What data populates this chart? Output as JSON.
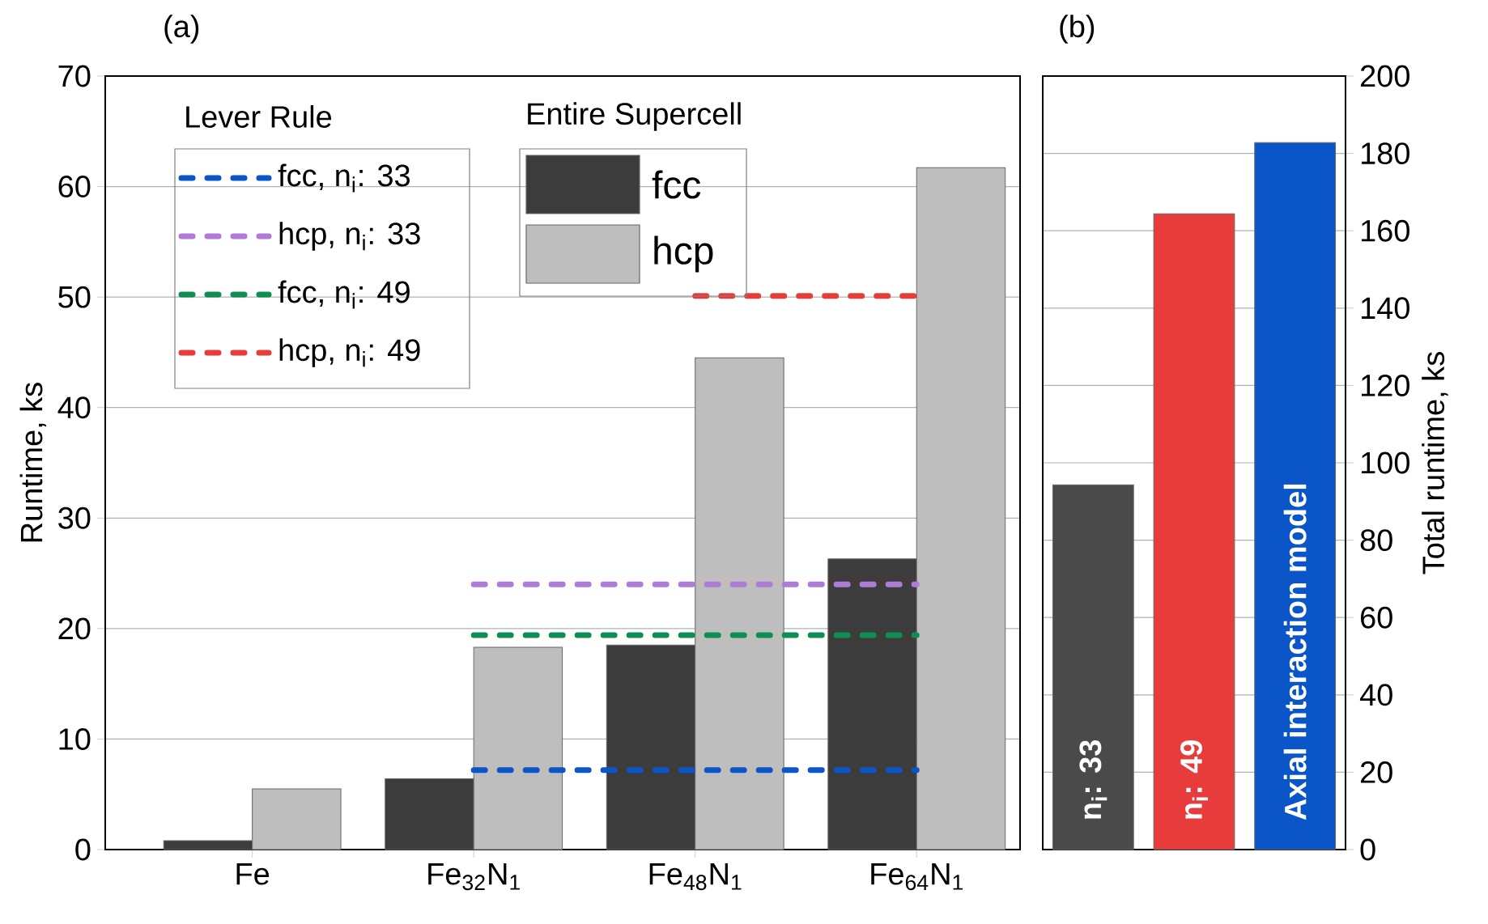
{
  "chart_data": [
    {
      "type": "bar",
      "title": "(a)",
      "ylabel": "Runtime, ks",
      "categories": [
        "Fe",
        "Fe$_{32}$N$_{1}$",
        "Fe$_{48}$N$_{1}$",
        "Fe$_{64}$N$_{1}$"
      ],
      "series": [
        {
          "name": "fcc",
          "color": "#3c3c3c",
          "values": [
            0.8,
            6.4,
            18.5,
            26.3
          ]
        },
        {
          "name": "hcp",
          "color": "#bebebe",
          "values": [
            5.5,
            18.3,
            44.5,
            61.7
          ]
        },
        {
          "name": "fcc,  n$_{i}$: 33",
          "type": "line",
          "color": "#0a55c8",
          "line_style": "dashed",
          "marker": "none",
          "values": [
            null,
            7.2,
            7.2,
            7.2
          ]
        },
        {
          "name": "hcp, n$_{i}$: 33",
          "type": "line",
          "color": "#b07ad6",
          "line_style": "dashed",
          "marker": "none",
          "values": [
            null,
            24.0,
            24.0,
            24.0
          ]
        },
        {
          "name": "fcc,  n$_{i}$: 49",
          "type": "line",
          "color": "#0c8f50",
          "line_style": "dashed",
          "marker": "none",
          "values": [
            null,
            19.4,
            19.4,
            19.4
          ]
        },
        {
          "name": "hcp, n$_{i}$: 49",
          "type": "line",
          "color": "#e83c3c",
          "line_style": "dashed",
          "marker": "none",
          "values": [
            null,
            null,
            50.1,
            50.1
          ]
        }
      ],
      "ylim": [
        0,
        70
      ],
      "yticks": [
        0,
        10,
        20,
        30,
        40,
        50,
        60,
        70
      ],
      "grid": "y",
      "legend": "top left",
      "legend_title": "Lever Rule",
      "annotations": [
        "Entire Supercell"
      ]
    },
    {
      "type": "bar",
      "title": "(b)",
      "y2label": "Total runtime, ks",
      "categories": [
        "n$_{i}$: 33",
        "n$_{i}$: 49",
        "Axial interaction model"
      ],
      "series": [
        {
          "axis": "y2",
          "colors": [
            "#4a4a4a",
            "#e83c3c",
            "#0a55c8"
          ],
          "values": [
            94.3,
            164.4,
            182.8
          ]
        }
      ],
      "y2lim": [
        0,
        200
      ],
      "y2ticks": [
        0,
        20,
        40,
        60,
        80,
        100,
        120,
        140,
        160,
        180,
        200
      ],
      "grid": "y"
    }
  ]
}
